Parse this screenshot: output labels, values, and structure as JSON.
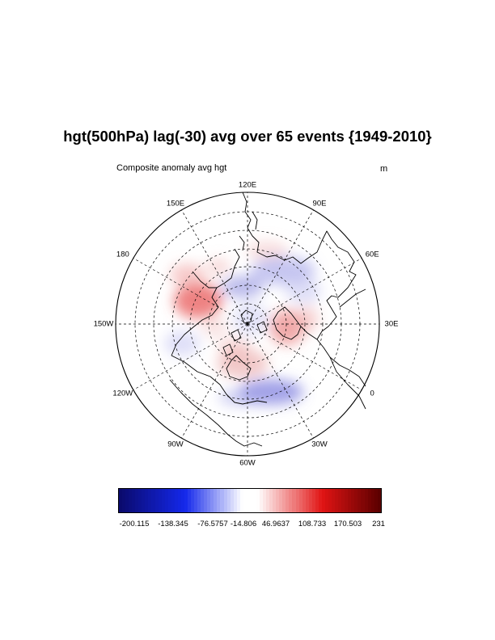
{
  "title": "hgt(500hPa) lag(-30) avg over 65 events {1949-2010}",
  "subtitle_left": "Composite anomaly avg hgt",
  "units": "m",
  "longitude_labels": [
    "120E",
    "90E",
    "60E",
    "30E",
    "0",
    "30W",
    "60W",
    "90W",
    "120W",
    "150W",
    "180",
    "150E"
  ],
  "colorbar": {
    "labels": [
      "-200.115",
      "-138.345",
      "-76.5757",
      "-14.806",
      "46.9637",
      "108.733",
      "170.503",
      "231"
    ],
    "min_color": "#0a0a6e",
    "mid_color": "#ffffff",
    "max_color": "#5c0000"
  },
  "map": {
    "projection": "north polar stereographic",
    "gridlines": "dashed",
    "anomaly_features": [
      {
        "region": "Pacific / NE Asia",
        "sign": "positive",
        "color": "#e86060"
      },
      {
        "region": "North America (Canada)",
        "sign": "positive",
        "color": "#e8a0a0"
      },
      {
        "region": "Europe / Scandinavia",
        "sign": "positive",
        "color": "#e87070"
      },
      {
        "region": "Central Asia / Siberia",
        "sign": "negative",
        "color": "#8080e0"
      },
      {
        "region": "North Atlantic",
        "sign": "negative",
        "color": "#6a6ad8"
      },
      {
        "region": "Arctic / Greenland",
        "sign": "negative",
        "color": "#b0b0ee"
      }
    ]
  }
}
